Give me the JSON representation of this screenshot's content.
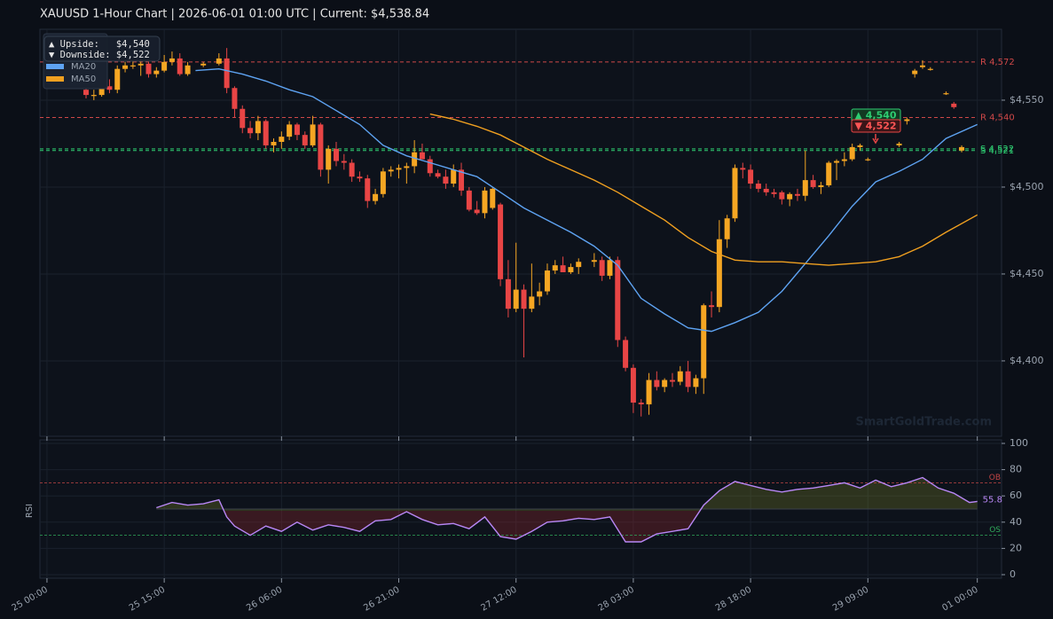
{
  "chart_data": [
    {
      "type": "candlestick",
      "title": "XAUUSD  1-Hour Chart  |  2026-06-01 01:00 UTC  |  Current: $4,538.84",
      "x": [
        5,
        6,
        7,
        8,
        9,
        10,
        11,
        12,
        13,
        14,
        15,
        16,
        17,
        18,
        20,
        22,
        23,
        24,
        25,
        26,
        27,
        28,
        29,
        30,
        31,
        32,
        33,
        34,
        35,
        36,
        37,
        38,
        39,
        40,
        41,
        42,
        43,
        44,
        45,
        46,
        47,
        48,
        49,
        50,
        51,
        52,
        53,
        54,
        55,
        56,
        57,
        58,
        59,
        60,
        61,
        62,
        63,
        64,
        65,
        66,
        67,
        68,
        70,
        71,
        72,
        73,
        74,
        75,
        76,
        77,
        78,
        79,
        80,
        81,
        82,
        83,
        84,
        85,
        86,
        87,
        88,
        89,
        90,
        91,
        92,
        93,
        94,
        95,
        96,
        97,
        98,
        99,
        100,
        101,
        102,
        103,
        104,
        105,
        109,
        110,
        111,
        112,
        113,
        115,
        116,
        117
      ],
      "open": [
        4556,
        4553,
        4553,
        4558,
        4556,
        4568,
        4570,
        4570,
        4571,
        4565,
        4567,
        4572,
        4574,
        4565,
        4570,
        4571,
        4574,
        4557,
        4545,
        4534,
        4531,
        4538,
        4524,
        4526,
        4529,
        4536,
        4530,
        4524,
        4536,
        4510,
        4522,
        4515,
        4514,
        4506,
        4505,
        4492,
        4496,
        4509,
        4510,
        4511,
        4512,
        4520,
        4516,
        4508,
        4506,
        4502,
        4510,
        4498,
        4487,
        4485,
        4488,
        4490,
        4447,
        4430,
        4441,
        4430,
        4437,
        4440,
        4452,
        4455,
        4451,
        4454,
        4457,
        4458,
        4449,
        4458,
        4412,
        4396,
        4376,
        4375,
        4389,
        4385,
        4389,
        4388,
        4394,
        4385,
        4390,
        4432,
        4431,
        4470,
        4482,
        4511,
        4510,
        4502,
        4499,
        4497,
        4497,
        4493,
        4496,
        4495,
        4504,
        4500,
        4501,
        4514,
        4515,
        4516,
        4523,
        4516,
        4524,
        4538,
        4565,
        4569,
        4568,
        4554,
        4548,
        4521
      ],
      "high": [
        4558,
        4556,
        4560,
        4562,
        4570,
        4572,
        4573,
        4574,
        4572,
        4569,
        4576,
        4578,
        4577,
        4572,
        4572,
        4577,
        4580,
        4558,
        4547,
        4538,
        4541,
        4539,
        4528,
        4532,
        4538,
        4537,
        4532,
        4541,
        4537,
        4524,
        4526,
        4519,
        4516,
        4509,
        4507,
        4499,
        4511,
        4512,
        4513,
        4514,
        4527,
        4525,
        4518,
        4510,
        4510,
        4513,
        4514,
        4500,
        4492,
        4500,
        4500,
        4491,
        4458,
        4468,
        4444,
        4456,
        4445,
        4456,
        4458,
        4460,
        4456,
        4459,
        4462,
        4460,
        4460,
        4460,
        4414,
        4398,
        4378,
        4393,
        4394,
        4390,
        4393,
        4397,
        4400,
        4392,
        4433,
        4440,
        4481,
        4484,
        4513,
        4514,
        4513,
        4504,
        4502,
        4499,
        4498,
        4497,
        4499,
        4521,
        4507,
        4503,
        4515,
        4516,
        4520,
        4525,
        4525,
        4517,
        4526,
        4540,
        4568,
        4573,
        4569,
        4555,
        4549,
        4524
      ],
      "low": [
        4551,
        4550,
        4552,
        4554,
        4554,
        4566,
        4568,
        4564,
        4563,
        4563,
        4566,
        4570,
        4564,
        4564,
        4569,
        4570,
        4554,
        4540,
        4531,
        4528,
        4527,
        4522,
        4520,
        4522,
        4527,
        4527,
        4522,
        4523,
        4506,
        4502,
        4512,
        4510,
        4503,
        4503,
        4488,
        4490,
        4494,
        4506,
        4505,
        4502,
        4508,
        4516,
        4506,
        4505,
        4499,
        4500,
        4495,
        4486,
        4484,
        4482,
        4487,
        4443,
        4425,
        4428,
        4402,
        4428,
        4432,
        4438,
        4450,
        4452,
        4450,
        4450,
        4454,
        4446,
        4447,
        4408,
        4394,
        4370,
        4368,
        4369,
        4383,
        4382,
        4385,
        4386,
        4382,
        4381,
        4381,
        4425,
        4428,
        4465,
        4480,
        4505,
        4499,
        4497,
        4495,
        4494,
        4490,
        4489,
        4492,
        4492,
        4499,
        4496,
        4500,
        4504,
        4512,
        4515,
        4521,
        4515,
        4523,
        4536,
        4563,
        4568,
        4567,
        4553,
        4545,
        4520
      ],
      "close": [
        4553,
        4553,
        4558,
        4556,
        4568,
        4570,
        4570,
        4571,
        4565,
        4567,
        4572,
        4574,
        4565,
        4570,
        4571,
        4574,
        4557,
        4545,
        4534,
        4531,
        4538,
        4524,
        4526,
        4529,
        4536,
        4530,
        4524,
        4536,
        4510,
        4522,
        4515,
        4514,
        4506,
        4505,
        4492,
        4496,
        4509,
        4510,
        4511,
        4512,
        4520,
        4516,
        4508,
        4506,
        4502,
        4510,
        4498,
        4487,
        4485,
        4498,
        4499,
        4447,
        4430,
        4441,
        4430,
        4437,
        4440,
        4452,
        4455,
        4451,
        4454,
        4457,
        4458,
        4449,
        4458,
        4412,
        4396,
        4376,
        4375,
        4389,
        4385,
        4389,
        4388,
        4394,
        4385,
        4390,
        4432,
        4431,
        4470,
        4482,
        4511,
        4510,
        4502,
        4499,
        4497,
        4496,
        4493,
        4496,
        4495,
        4504,
        4500,
        4501,
        4514,
        4515,
        4516,
        4523,
        4524,
        4516,
        4525,
        4539,
        4567,
        4570,
        4568,
        4554,
        4546,
        4523
      ],
      "up_color": "#f5a623",
      "down_color": "#e84545",
      "series": [
        {
          "name": "MA20",
          "color": "#5ea3f2",
          "x": [
            19,
            22,
            25,
            28,
            31,
            34,
            37,
            40,
            43,
            46,
            49,
            52,
            55,
            58,
            61,
            64,
            67,
            70,
            73,
            76,
            79,
            82,
            85,
            88,
            91,
            94,
            97,
            100,
            103,
            106,
            109,
            112,
            115,
            119
          ],
          "values": [
            4567,
            4568,
            4565,
            4561,
            4556,
            4552,
            4544,
            4536,
            4524,
            4518,
            4514,
            4510,
            4506,
            4497,
            4488,
            4481,
            4474,
            4466,
            4455,
            4436,
            4427,
            4419,
            4417,
            4422,
            4428,
            4440,
            4456,
            4472,
            4489,
            4503,
            4509,
            4516,
            4528,
            4536
          ]
        },
        {
          "name": "MA50",
          "color": "#f0a020",
          "x": [
            49,
            52,
            55,
            58,
            61,
            64,
            67,
            70,
            73,
            76,
            79,
            82,
            85,
            88,
            91,
            94,
            97,
            100,
            103,
            106,
            109,
            112,
            115,
            119
          ],
          "values": [
            4542,
            4539,
            4535,
            4530,
            4523,
            4516,
            4510,
            4504,
            4497,
            4489,
            4481,
            4471,
            4463,
            4458,
            4457,
            4457,
            4456,
            4455,
            4456,
            4457,
            4460,
            4466,
            4474,
            4484
          ]
        }
      ],
      "xlim": [
        -0.9,
        122.1
      ],
      "xticks": [
        {
          "value": 0,
          "label": "25 00:00"
        },
        {
          "value": 15,
          "label": "25 15:00"
        },
        {
          "value": 30,
          "label": "26 06:00"
        },
        {
          "value": 45,
          "label": "26 21:00"
        },
        {
          "value": 60,
          "label": "27 12:00"
        },
        {
          "value": 75,
          "label": "28 03:00"
        },
        {
          "value": 90,
          "label": "28 18:00"
        },
        {
          "value": 105,
          "label": "29 09:00"
        },
        {
          "value": 119,
          "label": "01 00:00"
        }
      ],
      "ylim": [
        4356.6,
        4590.8
      ],
      "yticks": [
        {
          "value": 4400,
          "label": "$4,400"
        },
        {
          "value": 4450,
          "label": "$4,450"
        },
        {
          "value": 4500,
          "label": "$4,500"
        },
        {
          "value": 4550,
          "label": "$4,550"
        }
      ],
      "grid": true,
      "levels": [
        {
          "label": "R 4,572",
          "value": 4572,
          "color": "#d04848"
        },
        {
          "label": "R 4,540",
          "value": 4540,
          "color": "#d04848"
        },
        {
          "label": "S 4,522",
          "value": 4522,
          "color": "#2ecc71"
        },
        {
          "label": "S 4,521",
          "value": 4521,
          "color": "#2ecc71"
        }
      ],
      "badges": [
        "▲ 4,540",
        "▼ 4,522"
      ],
      "upside": "▲ Upside:   $4,540",
      "downside": "▼ Downside: $4,522",
      "watermark": "SmartGoldTrade.com"
    },
    {
      "type": "line",
      "ylabel": "RSI",
      "series": [
        {
          "name": "RSI",
          "color": "#b887f5",
          "x": [
            14,
            16,
            18,
            20,
            22,
            23,
            24,
            26,
            28,
            30,
            32,
            34,
            36,
            38,
            40,
            42,
            44,
            46,
            48,
            50,
            52,
            54,
            56,
            58,
            60,
            62,
            64,
            66,
            68,
            70,
            72,
            74,
            76,
            78,
            80,
            82,
            84,
            86,
            88,
            90,
            92,
            94,
            96,
            98,
            100,
            102,
            104,
            106,
            108,
            110,
            112,
            114,
            116,
            118,
            119
          ],
          "values": [
            51,
            55,
            53,
            54,
            57,
            44,
            37,
            30,
            37,
            33,
            40,
            34,
            38,
            36,
            33,
            41,
            42,
            48,
            42,
            38,
            39,
            35,
            44,
            29,
            27,
            33,
            40,
            41,
            43,
            42,
            44,
            25,
            25,
            31,
            33,
            35,
            53,
            64,
            71,
            68,
            65,
            63,
            65,
            66,
            68,
            70,
            66,
            72,
            67,
            70,
            74,
            66,
            62,
            55,
            55.8
          ]
        }
      ],
      "current_label": "55.8",
      "xlim": [
        -0.9,
        122.1
      ],
      "ylim": [
        -2.7,
        102.7
      ],
      "yticks": [
        0,
        20,
        40,
        60,
        80,
        100
      ],
      "grid": true,
      "levels": [
        {
          "label": "OB",
          "value": 70,
          "color": "#c04444"
        },
        {
          "label": "OS",
          "value": 30,
          "color": "#2fa85a"
        }
      ]
    }
  ]
}
